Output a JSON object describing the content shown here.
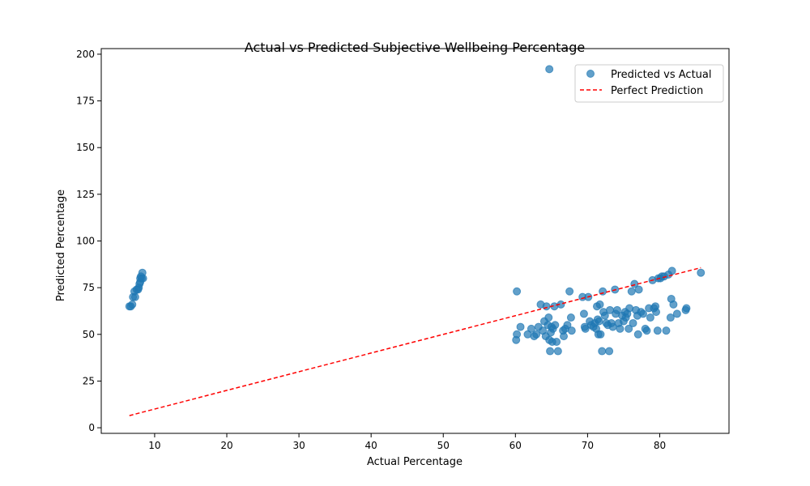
{
  "chart_data": {
    "type": "scatter",
    "title": "Actual vs Predicted Subjective Wellbeing Percentage",
    "xlabel": "Actual Percentage",
    "ylabel": "Predicted Percentage",
    "xlim": [
      2.6,
      89.6
    ],
    "ylim": [
      -3,
      203
    ],
    "xticks": [
      10,
      20,
      30,
      40,
      50,
      60,
      70,
      80
    ],
    "yticks": [
      0,
      25,
      50,
      75,
      100,
      125,
      150,
      175,
      200
    ],
    "grid": false,
    "legend_position": "upper-right",
    "colors": {
      "scatter": "#1f77b4",
      "reference": "#ff0000"
    },
    "series": [
      {
        "name": "Predicted vs Actual",
        "kind": "scatter",
        "points": [
          [
            6.5,
            65
          ],
          [
            6.7,
            65
          ],
          [
            6.9,
            66
          ],
          [
            7.0,
            70
          ],
          [
            7.2,
            73
          ],
          [
            7.3,
            70
          ],
          [
            7.5,
            74
          ],
          [
            7.7,
            74
          ],
          [
            7.8,
            75
          ],
          [
            7.9,
            77
          ],
          [
            8.0,
            78
          ],
          [
            8.0,
            80
          ],
          [
            8.1,
            81
          ],
          [
            8.2,
            80
          ],
          [
            8.3,
            83
          ],
          [
            8.4,
            80
          ],
          [
            64.7,
            192
          ],
          [
            60.2,
            73
          ],
          [
            60.2,
            50
          ],
          [
            60.1,
            47
          ],
          [
            60.7,
            54
          ],
          [
            61.7,
            50
          ],
          [
            62.2,
            53
          ],
          [
            62.6,
            49
          ],
          [
            62.9,
            50
          ],
          [
            63.2,
            54
          ],
          [
            63.5,
            66
          ],
          [
            63.8,
            52
          ],
          [
            64.0,
            57
          ],
          [
            64.2,
            49
          ],
          [
            64.3,
            65
          ],
          [
            64.5,
            55
          ],
          [
            64.6,
            59
          ],
          [
            64.7,
            47
          ],
          [
            64.8,
            41
          ],
          [
            64.9,
            51
          ],
          [
            65.0,
            54
          ],
          [
            65.1,
            46
          ],
          [
            65.2,
            53
          ],
          [
            65.4,
            65
          ],
          [
            65.5,
            55
          ],
          [
            65.7,
            46
          ],
          [
            65.9,
            41
          ],
          [
            66.3,
            66
          ],
          [
            66.6,
            52
          ],
          [
            66.7,
            49
          ],
          [
            66.9,
            53
          ],
          [
            67.2,
            55
          ],
          [
            67.5,
            73
          ],
          [
            67.7,
            59
          ],
          [
            67.8,
            52
          ],
          [
            69.3,
            70
          ],
          [
            69.5,
            61
          ],
          [
            69.6,
            54
          ],
          [
            69.7,
            53
          ],
          [
            70.1,
            70
          ],
          [
            70.3,
            57
          ],
          [
            70.5,
            55
          ],
          [
            70.8,
            54
          ],
          [
            71.0,
            56
          ],
          [
            71.2,
            53
          ],
          [
            71.3,
            65
          ],
          [
            71.4,
            58
          ],
          [
            71.5,
            50
          ],
          [
            71.6,
            57
          ],
          [
            71.7,
            66
          ],
          [
            71.8,
            50
          ],
          [
            72.0,
            41
          ],
          [
            72.1,
            73
          ],
          [
            72.2,
            62
          ],
          [
            72.4,
            60
          ],
          [
            72.6,
            56
          ],
          [
            72.8,
            55
          ],
          [
            73.0,
            41
          ],
          [
            73.1,
            63
          ],
          [
            73.3,
            56
          ],
          [
            73.5,
            54
          ],
          [
            73.8,
            74
          ],
          [
            73.9,
            61
          ],
          [
            74.1,
            63
          ],
          [
            74.3,
            56
          ],
          [
            74.5,
            53
          ],
          [
            74.8,
            60
          ],
          [
            75.0,
            57
          ],
          [
            75.2,
            62
          ],
          [
            75.3,
            59
          ],
          [
            75.5,
            61
          ],
          [
            75.7,
            53
          ],
          [
            75.8,
            64
          ],
          [
            76.1,
            73
          ],
          [
            76.3,
            56
          ],
          [
            76.5,
            77
          ],
          [
            76.7,
            63
          ],
          [
            76.9,
            60
          ],
          [
            77.0,
            50
          ],
          [
            77.1,
            74
          ],
          [
            77.4,
            62
          ],
          [
            77.7,
            61
          ],
          [
            78.0,
            53
          ],
          [
            78.2,
            52
          ],
          [
            78.5,
            64
          ],
          [
            78.7,
            59
          ],
          [
            79.0,
            79
          ],
          [
            79.2,
            64
          ],
          [
            79.4,
            65
          ],
          [
            79.5,
            62
          ],
          [
            79.7,
            52
          ],
          [
            79.8,
            80
          ],
          [
            80.1,
            80
          ],
          [
            80.3,
            81
          ],
          [
            80.6,
            81
          ],
          [
            80.9,
            52
          ],
          [
            81.2,
            82
          ],
          [
            81.5,
            59
          ],
          [
            81.6,
            69
          ],
          [
            81.7,
            84
          ],
          [
            81.9,
            66
          ],
          [
            82.4,
            61
          ],
          [
            83.6,
            63
          ],
          [
            83.7,
            64
          ],
          [
            85.7,
            83
          ]
        ]
      },
      {
        "name": "Perfect Prediction",
        "kind": "line",
        "style": "dashed",
        "x": [
          6.5,
          85.7
        ],
        "y": [
          6.5,
          85.7
        ]
      }
    ]
  }
}
